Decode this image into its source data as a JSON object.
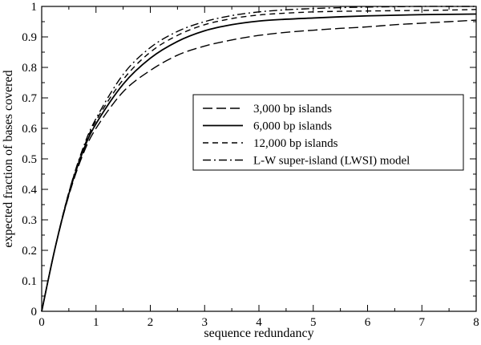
{
  "chart_data": {
    "type": "line",
    "title": "",
    "xlabel": "sequence redundancy",
    "ylabel": "expected fraction of bases covered",
    "xlim": [
      0,
      8
    ],
    "ylim": [
      0,
      1
    ],
    "x_ticks": [
      "0",
      "1",
      "2",
      "3",
      "4",
      "5",
      "6",
      "7",
      "8"
    ],
    "y_ticks": [
      "0",
      "0.1",
      "0.2",
      "0.3",
      "0.4",
      "0.5",
      "0.6",
      "0.7",
      "0.8",
      "0.9",
      "1"
    ],
    "grid": false,
    "legend_position": "center-right",
    "x": [
      0,
      0.25,
      0.5,
      0.75,
      1,
      1.5,
      2,
      2.5,
      3,
      3.5,
      4,
      4.5,
      5,
      5.5,
      6,
      6.5,
      7,
      7.5,
      8
    ],
    "series": [
      {
        "name": "3,000 bp islands",
        "dash": "long-dash",
        "values": [
          0,
          0.21,
          0.38,
          0.51,
          0.6,
          0.72,
          0.79,
          0.84,
          0.87,
          0.89,
          0.905,
          0.915,
          0.922,
          0.928,
          0.933,
          0.94,
          0.945,
          0.95,
          0.955
        ]
      },
      {
        "name": "6,000 bp islands",
        "dash": "solid",
        "values": [
          0,
          0.21,
          0.385,
          0.52,
          0.615,
          0.745,
          0.83,
          0.885,
          0.92,
          0.94,
          0.952,
          0.958,
          0.962,
          0.966,
          0.969,
          0.971,
          0.973,
          0.974,
          0.975
        ]
      },
      {
        "name": "12,000 bp islands",
        "dash": "dash",
        "values": [
          0,
          0.21,
          0.39,
          0.525,
          0.625,
          0.76,
          0.85,
          0.905,
          0.94,
          0.96,
          0.972,
          0.978,
          0.982,
          0.984,
          0.985,
          0.986,
          0.987,
          0.988,
          0.99
        ]
      },
      {
        "name": "L-W super-island (LWSI) model",
        "dash": "dash-dot",
        "values": [
          0,
          0.21,
          0.39,
          0.53,
          0.632,
          0.777,
          0.865,
          0.918,
          0.95,
          0.97,
          0.982,
          0.989,
          0.993,
          0.996,
          0.998,
          0.999,
          1.0,
          1.0,
          1.0
        ]
      }
    ]
  }
}
